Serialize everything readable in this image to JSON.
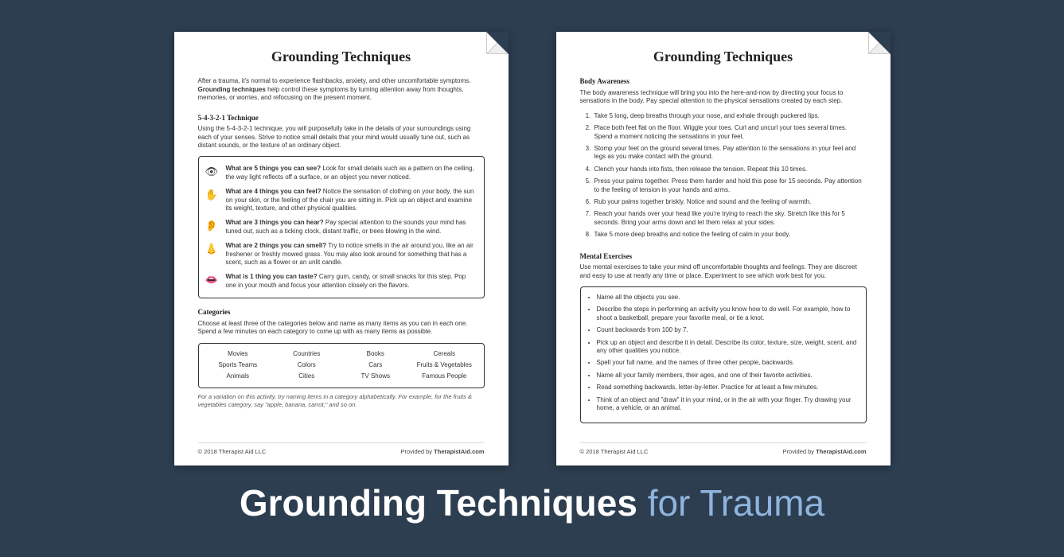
{
  "banner": {
    "bold": "Grounding Techniques",
    "light": "for Trauma"
  },
  "page1": {
    "title": "Grounding Techniques",
    "intro_a": "After a trauma, it's normal to experience flashbacks, anxiety, and other uncomfortable symptoms. ",
    "intro_bold": "Grounding techniques",
    "intro_b": " help control these symptoms by turning attention away from thoughts, memories, or worries, and refocusing on the present moment.",
    "tech_title": "5-4-3-2-1 Technique",
    "tech_desc": "Using the 5-4-3-2-1 technique, you will purposefully take in the details of your surroundings using each of your senses. Strive to notice small details that your mind would usually tune out, such as distant sounds, or the texture of an ordinary object.",
    "senses": [
      {
        "icon": "👁",
        "q": "What are 5 things you can see?",
        "a": " Look for small details such as a pattern on the ceiling, the way light reflects off a surface, or an object you never noticed."
      },
      {
        "icon": "✋",
        "q": "What are 4 things you can feel?",
        "a": " Notice the sensation of clothing on your body, the sun on your skin, or the feeling of the chair you are sitting in. Pick up an object and examine its weight, texture, and other physical qualities."
      },
      {
        "icon": "👂",
        "q": "What are 3 things you can hear?",
        "a": " Pay special attention to the sounds your mind has tuned out, such as a ticking clock, distant traffic, or trees blowing in the wind."
      },
      {
        "icon": "👃",
        "q": "What are 2 things you can smell?",
        "a": " Try to notice smells in the air around you, like an air freshener or freshly mowed grass. You may also look around for something that has a scent, such as a flower or an unlit candle."
      },
      {
        "icon": "👄",
        "q": "What is 1 thing you can taste?",
        "a": " Carry gum, candy, or small snacks for this step. Pop one in your mouth and focus your attention closely on the flavors."
      }
    ],
    "cat_title": "Categories",
    "cat_desc": "Choose at least three of the categories below and name as many items as you can in each one. Spend a few minutes on each category to come up with as many items as possible.",
    "cats": [
      [
        "Movies",
        "Countries",
        "Books",
        "Cereals"
      ],
      [
        "Sports Teams",
        "Colors",
        "Cars",
        "Fruits & Vegetables"
      ],
      [
        "Animals",
        "Cities",
        "TV Shows",
        "Famous People"
      ]
    ],
    "cat_note": "For a variation on this activity, try naming items in a category alphabetically. For example, for the fruits & vegetables category, say \"apple, banana, carrot,\" and so on.",
    "footer_left": "© 2018 Therapist Aid LLC",
    "footer_right_a": "Provided by ",
    "footer_right_b": "TherapistAid.com"
  },
  "page2": {
    "title": "Grounding Techniques",
    "body_title": "Body Awareness",
    "body_desc": "The body awareness technique will bring you into the here-and-now by directing your focus to sensations in the body. Pay special attention to the physical sensations created by each step.",
    "body_steps": [
      "Take 5 long, deep breaths through your nose, and exhale through puckered lips.",
      "Place both feet flat on the floor. Wiggle your toes. Curl and uncurl your toes several times. Spend a moment noticing the sensations in your feet.",
      "Stomp your feet on the ground several times. Pay attention to the sensations in your feet and legs as you make contact with the ground.",
      "Clench your hands into fists, then release the tension. Repeat this 10 times.",
      "Press your palms together. Press them harder and hold this pose for 15 seconds. Pay attention to the feeling of tension in your hands and arms.",
      "Rub your palms together briskly. Notice and sound and the feeling of warmth.",
      "Reach your hands over your head like you're trying to reach the sky. Stretch like this for 5 seconds. Bring your arms down and let them relax at your sides.",
      "Take 5 more deep breaths and notice the feeling of calm in your body."
    ],
    "mental_title": "Mental Exercises",
    "mental_desc": "Use mental exercises to take your mind off uncomfortable thoughts and feelings. They are discreet and easy to use at nearly any time or place. Experiment to see which work best for you.",
    "mental_items": [
      "Name all the objects you see.",
      "Describe the steps in performing an activity you know how to do well. For example, how to shoot a basketball, prepare your favorite meal, or tie a knot.",
      "Count backwards from 100 by 7.",
      "Pick up an object and describe it in detail. Describe its color, texture, size, weight, scent, and any other qualities you notice.",
      "Spell your full name, and the names of three other people, backwards.",
      "Name all your family members, their ages, and one of their favorite activities.",
      "Read something backwards, letter-by-letter. Practice for at least a few minutes.",
      "Think of an object and \"draw\" it in your mind, or in the air with your finger. Try drawing your home, a vehicle, or an animal."
    ],
    "footer_left": "© 2018 Therapist Aid LLC",
    "footer_right_a": "Provided by ",
    "footer_right_b": "TherapistAid.com"
  }
}
